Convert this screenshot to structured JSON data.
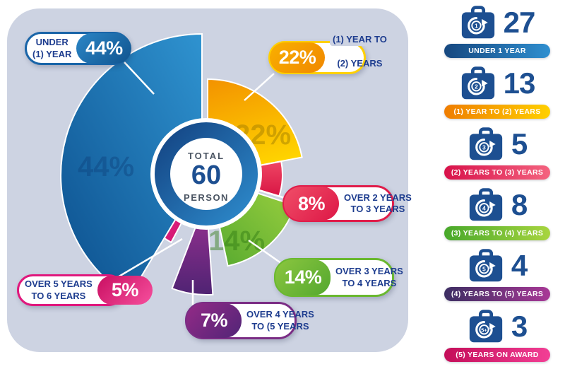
{
  "chart_data": {
    "type": "pie",
    "total": {
      "top": "TOTAL",
      "value": "60",
      "bottom": "PERSON"
    },
    "legend_position": "right",
    "slices": [
      {
        "label": "(1) YEAR TO (2) YEARS",
        "pct": 22,
        "count": 13,
        "colors": [
          "#f39200",
          "#ffd400"
        ],
        "watermark": "22%"
      },
      {
        "label": "OVER 2 YEARS TO 3 YEARS",
        "pct": 8,
        "count": 5,
        "colors": [
          "#ef4664",
          "#d81544"
        ]
      },
      {
        "label": "OVER 3 YEARS TO 4 YEARS",
        "pct": 14,
        "count": 8,
        "colors": [
          "#9ed13f",
          "#54a82f"
        ],
        "watermark": "14%"
      },
      {
        "label": "OVER 4 YEARS TO (5 YEARS",
        "pct": 7,
        "count": 4,
        "colors": [
          "#a03394",
          "#4f2373"
        ]
      },
      {
        "label": "OVER 5 YEARS TO 6 YEARS",
        "pct": 5,
        "count": 3,
        "colors": [
          "#ef2f8d",
          "#c70e68"
        ]
      },
      {
        "label": "UNDER (1) YEAR",
        "pct": 44,
        "count": 27,
        "colors": [
          "#2f93d0",
          "#0c4f8d"
        ],
        "watermark": "44%"
      }
    ]
  },
  "callouts": [
    {
      "pct": "44%",
      "line1": "UNDER",
      "line2": "(1) YEAR",
      "accent": [
        "#2b86c6",
        "#11548f"
      ],
      "border": "#1a65a8",
      "pct_side": "right"
    },
    {
      "pct": "22%",
      "line1": "(1) YEAR TO",
      "line2": "(2) YEARS",
      "accent": [
        "#f9b000",
        "#f08700"
      ],
      "border": "#ffd000",
      "pct_side": "left"
    },
    {
      "pct": "8%",
      "line1": "OVER 2 YEARS",
      "line2": "TO 3 YEARS",
      "accent": [
        "#f04e68",
        "#dd1746"
      ],
      "border": "#e01c4a",
      "pct_side": "left"
    },
    {
      "pct": "14%",
      "line1": "OVER 3 YEARS",
      "line2": "TO 4 YEARS",
      "accent": [
        "#8bc63f",
        "#54a82f"
      ],
      "border": "#6ab82f",
      "pct_side": "left"
    },
    {
      "pct": "7%",
      "line1": "OVER 4 YEARS",
      "line2": "TO (5 YEARS",
      "accent": [
        "#942a87",
        "#512577"
      ],
      "border": "#7b2d85",
      "pct_side": "left"
    },
    {
      "pct": "5%",
      "line1": "OVER 5 YEARS",
      "line2": "TO 6 YEARS",
      "accent": [
        "#c90f62",
        "#f64f9d"
      ],
      "border": "#e0187d",
      "pct_side": "right"
    }
  ],
  "sidebar": {
    "icon_color": "#1d4f91",
    "value_color": "#1d4f91",
    "items": [
      {
        "value": "27",
        "badge": "1",
        "label": "UNDER 1 YEAR",
        "pill": [
          "#16477f",
          "#2f8fd0"
        ]
      },
      {
        "value": "13",
        "badge": "2",
        "label": "(1) YEAR TO (2) YEARS",
        "pill": [
          "#ef7d00",
          "#ffd000"
        ]
      },
      {
        "value": "5",
        "badge": "3",
        "label": "(2) YEARS TO (3) YEARS",
        "pill": [
          "#d8124a",
          "#f4637f"
        ]
      },
      {
        "value": "8",
        "badge": "4",
        "label": "(3) YEARS TO (4) YEARS",
        "pill": [
          "#47a82a",
          "#a8d53f"
        ]
      },
      {
        "value": "4",
        "badge": "5",
        "label": "(4) YEARS TO (5) YEARS",
        "pill": [
          "#3c2e62",
          "#a83896"
        ]
      },
      {
        "value": "3",
        "badge": "5+",
        "label": "(5) YEARS ON AWARD",
        "pill": [
          "#c40e59",
          "#f23f95"
        ]
      }
    ]
  },
  "colors": {
    "panel_bg": "#cdd3e2",
    "label_text": "#1e3d8f",
    "center_value": "#1d4f91",
    "center_caption": "#4b5563"
  }
}
